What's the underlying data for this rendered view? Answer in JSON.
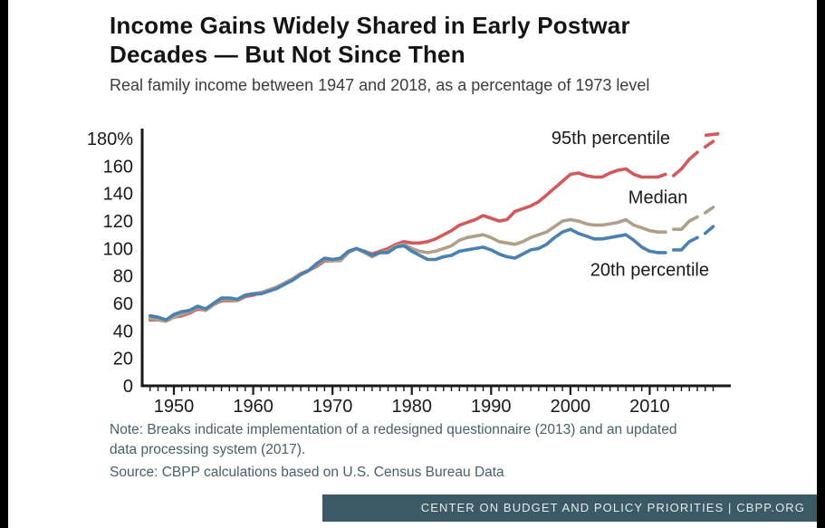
{
  "page": {
    "title_line1": "Income Gains Widely Shared in Early Postwar",
    "title_line2": "Decades — But Not Since Then",
    "subtitle": "Real family income between 1947 and 2018, as a percentage of 1973 level",
    "note": "Note: Breaks indicate implementation of a redesigned questionnaire (2013) and an updated data processing system (2017).",
    "source": "Source: CBPP calculations based on U.S. Census Bureau Data",
    "footer": "CENTER ON BUDGET AND POLICY PRIORITIES | CBPP.ORG"
  },
  "colors": {
    "axis": "#1a1a1a",
    "text": "#1a1a1a",
    "note_text": "#47606c",
    "footer_bg": "#3c5a66",
    "footer_text": "#e4ebee",
    "p95": "#d15a5c",
    "median": "#b0a089",
    "p20": "#4c80b0"
  },
  "chart_data": {
    "type": "line",
    "title": "Income Gains Widely Shared in Early Postwar Decades — But Not Since Then",
    "subtitle": "Real family income between 1947 and 2018, as a percentage of 1973 level",
    "xlabel": "",
    "ylabel": "",
    "xlim": [
      1946,
      2020
    ],
    "ylim": [
      0,
      186
    ],
    "yticks": [
      0,
      20,
      40,
      60,
      80,
      100,
      120,
      140,
      160,
      180
    ],
    "ytick_labels": [
      "0",
      "20",
      "40",
      "60",
      "80",
      "100",
      "120",
      "140",
      "160",
      "180%"
    ],
    "xticks": [
      1950,
      1960,
      1970,
      1980,
      1990,
      2000,
      2010
    ],
    "minor_xticks": {
      "from": 1947,
      "to": 2018,
      "step": 1
    },
    "grid": false,
    "legend_position": "inline-labels",
    "series": [
      {
        "name": "95th percentile",
        "color": "#d15a5c",
        "segments": [
          [
            [
              1947,
              48
            ],
            [
              1948,
              48
            ],
            [
              1949,
              47
            ],
            [
              1950,
              50
            ],
            [
              1951,
              51
            ],
            [
              1952,
              53
            ],
            [
              1953,
              56
            ],
            [
              1954,
              55
            ],
            [
              1955,
              59
            ],
            [
              1956,
              62
            ],
            [
              1957,
              62
            ],
            [
              1958,
              62
            ],
            [
              1959,
              65
            ],
            [
              1960,
              66
            ],
            [
              1961,
              68
            ],
            [
              1962,
              69
            ],
            [
              1963,
              72
            ],
            [
              1964,
              75
            ],
            [
              1965,
              78
            ],
            [
              1966,
              81
            ],
            [
              1967,
              84
            ],
            [
              1968,
              87
            ],
            [
              1969,
              91
            ],
            [
              1970,
              91
            ],
            [
              1971,
              92
            ],
            [
              1972,
              97
            ],
            [
              1973,
              100
            ],
            [
              1974,
              98
            ],
            [
              1975,
              96
            ],
            [
              1976,
              98
            ],
            [
              1977,
              100
            ],
            [
              1978,
              103
            ],
            [
              1979,
              105
            ],
            [
              1980,
              104
            ],
            [
              1981,
              104
            ],
            [
              1982,
              105
            ],
            [
              1983,
              107
            ],
            [
              1984,
              110
            ],
            [
              1985,
              113
            ],
            [
              1986,
              117
            ],
            [
              1987,
              119
            ],
            [
              1988,
              121
            ],
            [
              1989,
              124
            ],
            [
              1990,
              122
            ],
            [
              1991,
              120
            ],
            [
              1992,
              121
            ],
            [
              1993,
              127
            ],
            [
              1994,
              129
            ],
            [
              1995,
              131
            ],
            [
              1996,
              134
            ],
            [
              1997,
              139
            ],
            [
              1998,
              144
            ],
            [
              1999,
              149
            ],
            [
              2000,
              154
            ],
            [
              2001,
              155
            ],
            [
              2002,
              153
            ],
            [
              2003,
              152
            ],
            [
              2004,
              152
            ],
            [
              2005,
              155
            ],
            [
              2006,
              157
            ],
            [
              2007,
              158
            ],
            [
              2008,
              154
            ],
            [
              2009,
              152
            ],
            [
              2010,
              152
            ],
            [
              2011,
              152
            ],
            [
              2012,
              154
            ]
          ],
          [
            [
              2013,
              153
            ],
            [
              2014,
              158
            ],
            [
              2015,
              165
            ],
            [
              2016,
              170
            ]
          ],
          [
            [
              2017,
              174
            ],
            [
              2018,
              178
            ]
          ],
          [
            [
              2017.1,
              182.5
            ],
            [
              2018.6,
              183.5
            ]
          ]
        ]
      },
      {
        "name": "Median",
        "color": "#b0a089",
        "segments": [
          [
            [
              1947,
              49
            ],
            [
              1948,
              48
            ],
            [
              1949,
              47
            ],
            [
              1950,
              50
            ],
            [
              1951,
              52
            ],
            [
              1952,
              54
            ],
            [
              1953,
              57
            ],
            [
              1954,
              55
            ],
            [
              1955,
              59
            ],
            [
              1956,
              63
            ],
            [
              1957,
              63
            ],
            [
              1958,
              62
            ],
            [
              1959,
              66
            ],
            [
              1960,
              67
            ],
            [
              1961,
              68
            ],
            [
              1962,
              70
            ],
            [
              1963,
              72
            ],
            [
              1964,
              75
            ],
            [
              1965,
              78
            ],
            [
              1966,
              82
            ],
            [
              1967,
              84
            ],
            [
              1968,
              88
            ],
            [
              1969,
              92
            ],
            [
              1970,
              91
            ],
            [
              1971,
              91
            ],
            [
              1972,
              97
            ],
            [
              1973,
              100
            ],
            [
              1974,
              97
            ],
            [
              1975,
              94
            ],
            [
              1976,
              97
            ],
            [
              1977,
              98
            ],
            [
              1978,
              102
            ],
            [
              1979,
              103
            ],
            [
              1980,
              100
            ],
            [
              1981,
              98
            ],
            [
              1982,
              97
            ],
            [
              1983,
              98
            ],
            [
              1984,
              100
            ],
            [
              1985,
              102
            ],
            [
              1986,
              106
            ],
            [
              1987,
              108
            ],
            [
              1988,
              109
            ],
            [
              1989,
              110
            ],
            [
              1990,
              108
            ],
            [
              1991,
              105
            ],
            [
              1992,
              104
            ],
            [
              1993,
              103
            ],
            [
              1994,
              105
            ],
            [
              1995,
              108
            ],
            [
              1996,
              110
            ],
            [
              1997,
              112
            ],
            [
              1998,
              116
            ],
            [
              1999,
              120
            ],
            [
              2000,
              121
            ],
            [
              2001,
              120
            ],
            [
              2002,
              118
            ],
            [
              2003,
              117
            ],
            [
              2004,
              117
            ],
            [
              2005,
              118
            ],
            [
              2006,
              119
            ],
            [
              2007,
              121
            ],
            [
              2008,
              117
            ],
            [
              2009,
              115
            ],
            [
              2010,
              113
            ],
            [
              2011,
              112
            ],
            [
              2012,
              112
            ]
          ],
          [
            [
              2013,
              114
            ],
            [
              2014,
              114
            ],
            [
              2015,
              120
            ],
            [
              2016,
              123
            ]
          ],
          [
            [
              2017,
              126
            ],
            [
              2018,
              130
            ]
          ]
        ]
      },
      {
        "name": "20th percentile",
        "color": "#4c80b0",
        "segments": [
          [
            [
              1947,
              51
            ],
            [
              1948,
              50
            ],
            [
              1949,
              48
            ],
            [
              1950,
              52
            ],
            [
              1951,
              54
            ],
            [
              1952,
              55
            ],
            [
              1953,
              58
            ],
            [
              1954,
              56
            ],
            [
              1955,
              60
            ],
            [
              1956,
              64
            ],
            [
              1957,
              64
            ],
            [
              1958,
              63
            ],
            [
              1959,
              66
            ],
            [
              1960,
              67
            ],
            [
              1961,
              67
            ],
            [
              1962,
              69
            ],
            [
              1963,
              71
            ],
            [
              1964,
              74
            ],
            [
              1965,
              77
            ],
            [
              1966,
              81
            ],
            [
              1967,
              84
            ],
            [
              1968,
              89
            ],
            [
              1969,
              93
            ],
            [
              1970,
              92
            ],
            [
              1971,
              93
            ],
            [
              1972,
              98
            ],
            [
              1973,
              100
            ],
            [
              1974,
              98
            ],
            [
              1975,
              95
            ],
            [
              1976,
              97
            ],
            [
              1977,
              97
            ],
            [
              1978,
              101
            ],
            [
              1979,
              102
            ],
            [
              1980,
              98
            ],
            [
              1981,
              95
            ],
            [
              1982,
              92
            ],
            [
              1983,
              92
            ],
            [
              1984,
              94
            ],
            [
              1985,
              95
            ],
            [
              1986,
              98
            ],
            [
              1987,
              99
            ],
            [
              1988,
              100
            ],
            [
              1989,
              101
            ],
            [
              1990,
              99
            ],
            [
              1991,
              96
            ],
            [
              1992,
              94
            ],
            [
              1993,
              93
            ],
            [
              1994,
              96
            ],
            [
              1995,
              99
            ],
            [
              1996,
              100
            ],
            [
              1997,
              103
            ],
            [
              1998,
              108
            ],
            [
              1999,
              112
            ],
            [
              2000,
              114
            ],
            [
              2001,
              111
            ],
            [
              2002,
              109
            ],
            [
              2003,
              107
            ],
            [
              2004,
              107
            ],
            [
              2005,
              108
            ],
            [
              2006,
              109
            ],
            [
              2007,
              110
            ],
            [
              2008,
              106
            ],
            [
              2009,
              101
            ],
            [
              2010,
              98
            ],
            [
              2011,
              97
            ],
            [
              2012,
              97
            ]
          ],
          [
            [
              2013,
              99
            ],
            [
              2014,
              99
            ],
            [
              2015,
              105
            ],
            [
              2016,
              108
            ]
          ],
          [
            [
              2017,
              111
            ],
            [
              2018,
              116
            ]
          ]
        ]
      }
    ],
    "annotations": [
      {
        "text": "95th percentile",
        "year": 1997.6,
        "value": 176
      },
      {
        "text": "Median",
        "year": 2007.3,
        "value": 133
      },
      {
        "text": "20th percentile",
        "year": 2002.5,
        "value": 80
      }
    ]
  }
}
